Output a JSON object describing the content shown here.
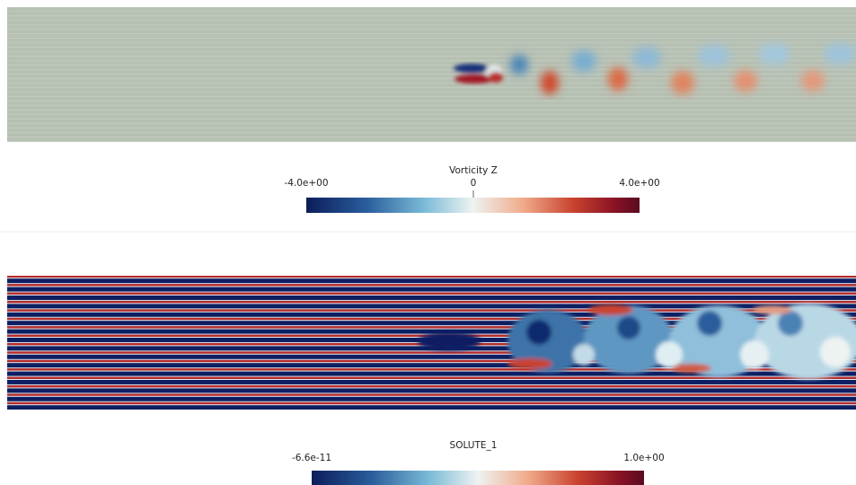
{
  "panels": [
    {
      "colorbar": {
        "title": "Vorticity Z",
        "labels": [
          "-4.0e+00",
          "0",
          "4.0e+00"
        ]
      }
    },
    {
      "colorbar": {
        "title": "SOLUTE_1",
        "labels": [
          "-6.6e-11",
          "1.0e+00"
        ]
      }
    }
  ]
}
